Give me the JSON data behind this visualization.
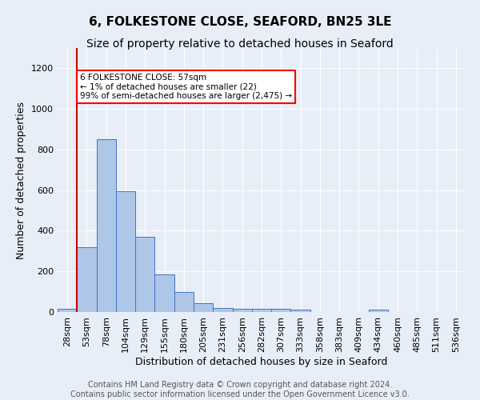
{
  "title": "6, FOLKESTONE CLOSE, SEAFORD, BN25 3LE",
  "subtitle": "Size of property relative to detached houses in Seaford",
  "xlabel": "Distribution of detached houses by size in Seaford",
  "ylabel": "Number of detached properties",
  "bar_labels": [
    "28sqm",
    "53sqm",
    "78sqm",
    "104sqm",
    "129sqm",
    "155sqm",
    "180sqm",
    "205sqm",
    "231sqm",
    "256sqm",
    "282sqm",
    "307sqm",
    "333sqm",
    "358sqm",
    "383sqm",
    "409sqm",
    "434sqm",
    "460sqm",
    "485sqm",
    "511sqm",
    "536sqm"
  ],
  "bar_values": [
    15,
    320,
    850,
    595,
    370,
    185,
    100,
    45,
    20,
    15,
    15,
    15,
    10,
    0,
    0,
    0,
    10,
    0,
    0,
    0,
    0
  ],
  "bar_color": "#aec6e8",
  "bar_edge_color": "#4472c4",
  "red_line_x": 0.5,
  "annotation_text": "6 FOLKESTONE CLOSE: 57sqm\n← 1% of detached houses are smaller (22)\n99% of semi-detached houses are larger (2,475) →",
  "annotation_box_color": "white",
  "annotation_box_edge_color": "red",
  "red_line_color": "#cc0000",
  "ylim": [
    0,
    1300
  ],
  "yticks": [
    0,
    200,
    400,
    600,
    800,
    1000,
    1200
  ],
  "footer_text": "Contains HM Land Registry data © Crown copyright and database right 2024.\nContains public sector information licensed under the Open Government Licence v3.0.",
  "background_color": "#e8eef8",
  "plot_bg_color": "#e8eef8",
  "title_fontsize": 11,
  "subtitle_fontsize": 10,
  "xlabel_fontsize": 9,
  "ylabel_fontsize": 9,
  "tick_fontsize": 8,
  "footer_fontsize": 7
}
